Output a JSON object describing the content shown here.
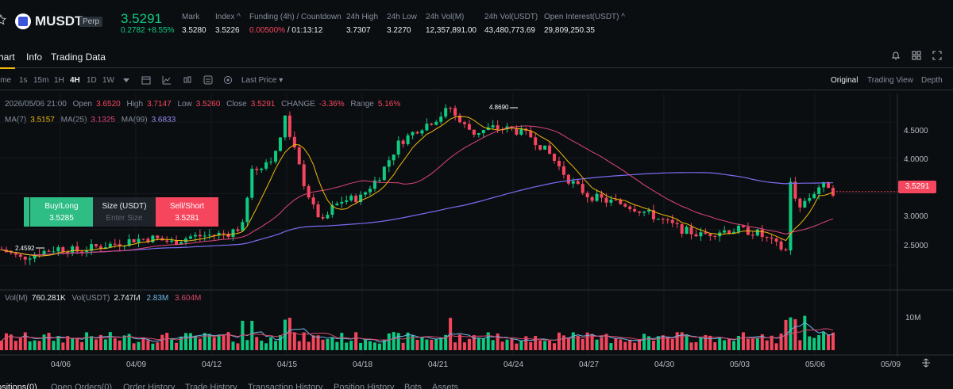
{
  "ticker": {
    "symbol": "MUSDT",
    "badge": "Perp",
    "last_price": "3.5291",
    "change": "0.2782 +8.55%",
    "stats": [
      {
        "label": "Mark",
        "value": "3.5280"
      },
      {
        "label": "Index ^",
        "value": "3.5226"
      },
      {
        "label": "Funding (4h) / Countdown",
        "value_red": "0.00500%",
        "value_rest": " / 01:13:12"
      },
      {
        "label": "24h High",
        "value": "3.7307"
      },
      {
        "label": "24h Low",
        "value": "3.2270"
      },
      {
        "label": "24h Vol(M)",
        "value": "12,357,891.00"
      },
      {
        "label": "24h Vol(USDT)",
        "value": "43,480,773.69"
      },
      {
        "label": "Open Interest(USDT) ^",
        "value": "29,809,250.35"
      }
    ]
  },
  "tabs": {
    "chart": "hart",
    "info": "Info",
    "trading_data": "Trading Data"
  },
  "toolbar": {
    "time": "ime",
    "intervals": [
      "1s",
      "15m",
      "1H",
      "4H",
      "1D",
      "1W"
    ],
    "active_interval": "4H",
    "last_price": "Last Price",
    "views": [
      "Original",
      "Trading View",
      "Depth"
    ],
    "active_view": "Original"
  },
  "ohlc": {
    "date": "2026/05/06 21:00",
    "open_label": "Open",
    "open": "3.6520",
    "high_label": "High",
    "high": "3.7147",
    "low_label": "Low",
    "low": "3.5260",
    "close_label": "Close",
    "close": "3.5291",
    "change_label": "CHANGE",
    "change": "-3.36%",
    "range_label": "Range",
    "range": "5.16%"
  },
  "ma_legend": {
    "ma7_label": "MA(7)",
    "ma7": "3.5157",
    "ma25_label": "MA(25)",
    "ma25": "3.1325",
    "ma99_label": "MA(99)",
    "ma99": "3.6833"
  },
  "vol_legend": {
    "vol_label": "Vol(M)",
    "vol": "760.281K",
    "vol_usdt_label": "Vol(USDT)",
    "vol_usdt": "2.747M",
    "ma1": "2.83M",
    "ma2": "3.604M"
  },
  "order_panel": {
    "buy_label": "Buy/Long",
    "buy_price": "3.5285",
    "size_label": "Size (USDT)",
    "size_placeholder": "Enter Size",
    "sell_label": "Sell/Short",
    "sell_price": "3.5281"
  },
  "price_tag": "3.5291",
  "y_axis": [
    "4.5000",
    "4.0000",
    "3.5000",
    "3.0000",
    "2.5000"
  ],
  "vol_axis": "10M",
  "x_axis": [
    "04/06",
    "04/09",
    "04/12",
    "04/15",
    "04/18",
    "04/21",
    "04/24",
    "04/27",
    "04/30",
    "05/03",
    "05/06",
    "05/09"
  ],
  "annotations": {
    "high": "4.8690",
    "low": "2.4592"
  },
  "bottom_tabs": [
    "ositions(0)",
    "Open Orders(0)",
    "Order History",
    "Trade History",
    "Transaction History",
    "Position History",
    "Bots",
    "Assets"
  ],
  "colors": {
    "up": "#0ecb81",
    "down": "#f6465d",
    "ma7": "#f0b90b",
    "ma25": "#e0457b",
    "ma99": "#7b6cf0",
    "vol_ma1": "#6db8e8",
    "vol_ma2": "#d9486b"
  },
  "chart_data": {
    "type": "candlestick",
    "x_range": [
      "04/04",
      "05/09"
    ],
    "y_range": [
      2.2,
      4.9
    ],
    "path": [
      [
        0,
        2.72
      ],
      [
        4,
        2.6
      ],
      [
        8,
        2.68
      ],
      [
        12,
        2.74
      ],
      [
        16,
        2.7
      ],
      [
        20,
        2.76
      ],
      [
        24,
        2.8
      ],
      [
        28,
        2.86
      ],
      [
        32,
        2.88
      ],
      [
        36,
        2.82
      ],
      [
        40,
        2.9
      ],
      [
        44,
        2.92
      ],
      [
        48,
        2.95
      ],
      [
        51,
        3.05
      ],
      [
        53,
        3.8
      ],
      [
        56,
        3.95
      ],
      [
        58,
        4.05
      ],
      [
        60,
        4.55
      ],
      [
        62,
        4.1
      ],
      [
        64,
        3.65
      ],
      [
        66,
        3.3
      ],
      [
        68,
        3.1
      ],
      [
        70,
        3.3
      ],
      [
        72,
        3.4
      ],
      [
        76,
        3.45
      ],
      [
        80,
        3.75
      ],
      [
        84,
        4.2
      ],
      [
        88,
        4.4
      ],
      [
        92,
        4.55
      ],
      [
        95,
        4.7
      ],
      [
        97,
        4.5
      ],
      [
        100,
        4.35
      ],
      [
        104,
        4.42
      ],
      [
        108,
        4.4
      ],
      [
        112,
        4.3
      ],
      [
        116,
        4.05
      ],
      [
        120,
        3.7
      ],
      [
        124,
        3.48
      ],
      [
        128,
        3.4
      ],
      [
        132,
        3.35
      ],
      [
        136,
        3.25
      ],
      [
        140,
        3.12
      ],
      [
        144,
        3.0
      ],
      [
        148,
        2.92
      ],
      [
        152,
        2.98
      ],
      [
        156,
        3.0
      ],
      [
        160,
        2.95
      ],
      [
        164,
        2.78
      ],
      [
        166,
        2.7
      ],
      [
        167,
        3.65
      ],
      [
        169,
        3.3
      ],
      [
        171,
        3.45
      ],
      [
        173,
        3.6
      ],
      [
        175,
        3.62
      ],
      [
        176,
        3.53
      ]
    ]
  }
}
